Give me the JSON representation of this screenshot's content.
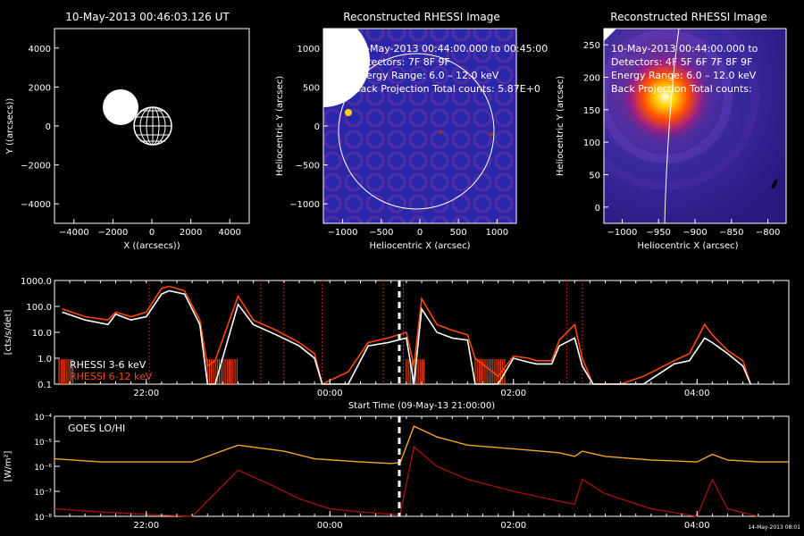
{
  "panels": {
    "overview": {
      "title": "10-May-2013 00:46:03.126 UT",
      "xlabel": "X ((arcsecs))",
      "ylabel": "Y ((arcsecs))",
      "xticks": [
        "−4000",
        "−2000",
        "0",
        "2000",
        "4000"
      ],
      "yticks": [
        "4000",
        "2000",
        "0",
        "−2000",
        "−4000"
      ]
    },
    "rhessi1": {
      "title": "Reconstructed RHESSI Image",
      "line1": "10-May-2013 00:44:00.000 to 00:45:00",
      "line2": "Detectors: 7F 8F 9F",
      "line3": "Energy Range: 6.0 – 12.0 keV",
      "line4": "Back Projection    Total counts: 5.87E+0",
      "xlabel": "Heliocentric X (arcsec)",
      "ylabel": "Heliocentric Y (arcsec)",
      "xticks": [
        "−1000",
        "−500",
        "0",
        "500",
        "1000"
      ],
      "yticks": [
        "1000",
        "500",
        "0",
        "−500",
        "−1000"
      ]
    },
    "rhessi2": {
      "title": "Reconstructed RHESSI Image",
      "line1": "10-May-2013 00:44:00.000 to",
      "line2": "Detectors: 4F 5F 6F 7F 8F 9F",
      "line3": "Energy Range: 6.0 – 12.0 keV",
      "line4": "Back Projection    Total counts:",
      "xlabel": "Heliocentric X (arcsec)",
      "ylabel": "Heliocentric Y (arcsec)",
      "xticks": [
        "−1000",
        "−950",
        "−900",
        "−850",
        "−800"
      ],
      "yticks": [
        "250",
        "200",
        "150",
        "100",
        "50",
        "0"
      ]
    }
  },
  "colors": {
    "rhessi_low": "#ffffff",
    "rhessi_high": "#ff4500",
    "goes_lo": "#f5a623",
    "goes_hi": "#a01010",
    "flare_marker": "#cc2200"
  },
  "footer_stamp": "14-May-2013 08:01",
  "chart_data": [
    {
      "type": "line",
      "title": "",
      "xlabel": "Start Time (09-May-13 21:00:00)",
      "ylabel": "[cts/s/det]",
      "scale": "log",
      "ylim": [
        0.1,
        1000
      ],
      "xlim_hours_label": [
        "21:00",
        "05:00"
      ],
      "xticks": [
        "22:00",
        "00:00",
        "02:00",
        "04:00"
      ],
      "yticks": [
        "1000.0",
        "100.0",
        "10.0",
        "1.0",
        "0.1"
      ],
      "legend": [
        "RHESSI  3-6 keV",
        "RHESSI  6-12 keV"
      ],
      "legend_placement": "bottom-left",
      "current_time_marker": "00:46",
      "series": [
        {
          "name": "RHESSI  3-6 keV",
          "x": [
            "21:05",
            "21:20",
            "21:35",
            "21:40",
            "21:50",
            "22:00",
            "22:10",
            "22:15",
            "22:25",
            "22:35",
            "22:40",
            "22:45",
            "23:00",
            "23:10",
            "23:25",
            "23:40",
            "23:50",
            "23:55",
            "00:12",
            "00:25",
            "00:38",
            "00:50",
            "00:55",
            "01:00",
            "01:10",
            "01:20",
            "01:30",
            "01:35",
            "01:50",
            "02:00",
            "02:10",
            "02:15",
            "02:25",
            "02:30",
            "02:40",
            "02:45",
            "02:52",
            "03:10",
            "03:25",
            "03:45",
            "03:55",
            "04:05",
            "04:10",
            "04:20",
            "04:30",
            "04:35"
          ],
          "values": [
            60,
            30,
            20,
            50,
            30,
            40,
            300,
            400,
            300,
            20,
            0.1,
            0.1,
            120,
            20,
            8,
            3,
            1,
            0.1,
            0.1,
            3,
            4,
            6,
            0.1,
            80,
            10,
            6,
            5,
            0.1,
            0.1,
            1,
            0.7,
            0.6,
            0.6,
            3,
            6,
            0.5,
            0.1,
            0.1,
            0.1,
            0.6,
            0.8,
            6,
            4,
            1.5,
            0.5,
            0.1
          ]
        },
        {
          "name": "RHESSI  6-12 keV",
          "x": [
            "21:05",
            "21:20",
            "21:35",
            "21:40",
            "21:50",
            "22:00",
            "22:10",
            "22:15",
            "22:25",
            "22:35",
            "22:40",
            "22:45",
            "23:00",
            "23:10",
            "23:25",
            "23:40",
            "23:50",
            "23:55",
            "00:12",
            "00:25",
            "00:38",
            "00:50",
            "00:55",
            "01:00",
            "01:10",
            "01:20",
            "01:30",
            "01:35",
            "01:50",
            "02:00",
            "02:10",
            "02:15",
            "02:25",
            "02:30",
            "02:40",
            "02:45",
            "02:52",
            "03:10",
            "03:25",
            "03:45",
            "03:55",
            "04:05",
            "04:10",
            "04:20",
            "04:30",
            "04:35"
          ],
          "values": [
            80,
            40,
            30,
            60,
            40,
            60,
            500,
            600,
            400,
            30,
            0.5,
            0.8,
            250,
            30,
            12,
            4,
            1.5,
            0.1,
            0.3,
            4,
            6,
            10,
            0.5,
            200,
            20,
            12,
            8,
            1,
            0.2,
            1.2,
            1,
            0.8,
            0.8,
            5,
            20,
            1,
            0.1,
            0.1,
            0.2,
            0.8,
            1.5,
            20,
            8,
            2,
            0.8,
            0.1
          ]
        }
      ]
    },
    {
      "type": "line",
      "title": "GOES LO/HI",
      "xlabel": "",
      "ylabel": "[W/m²]",
      "scale": "log",
      "ylim": [
        1e-08,
        0.0001
      ],
      "xticks": [
        "22:00",
        "00:00",
        "02:00",
        "04:00"
      ],
      "yticks": [
        "10⁻⁴",
        "10⁻⁵",
        "10⁻⁶",
        "10⁻⁷",
        "10⁻⁸"
      ],
      "series": [
        {
          "name": "GOES LO",
          "x": [
            "21:00",
            "21:30",
            "22:00",
            "22:30",
            "23:00",
            "23:30",
            "23:50",
            "00:20",
            "00:40",
            "00:46",
            "00:55",
            "01:10",
            "01:30",
            "02:00",
            "02:30",
            "02:40",
            "02:45",
            "03:00",
            "03:30",
            "04:00",
            "04:10",
            "04:20",
            "04:40",
            "05:00"
          ],
          "values": [
            2e-06,
            1.5e-06,
            1.5e-06,
            1.5e-06,
            7e-06,
            4e-06,
            2e-06,
            1.5e-06,
            1.3e-06,
            1.4e-06,
            4e-05,
            1.5e-05,
            7e-06,
            5e-06,
            3.5e-06,
            2.5e-06,
            4e-06,
            2.5e-06,
            1.8e-06,
            1.5e-06,
            3e-06,
            1.8e-06,
            1.5e-06,
            1.5e-06
          ]
        },
        {
          "name": "GOES HI",
          "x": [
            "21:00",
            "21:30",
            "22:00",
            "22:30",
            "23:00",
            "23:20",
            "23:40",
            "00:00",
            "00:20",
            "00:40",
            "00:46",
            "00:55",
            "01:10",
            "01:30",
            "02:00",
            "02:30",
            "02:40",
            "02:45",
            "03:00",
            "03:30",
            "04:00",
            "04:10",
            "04:20",
            "04:40"
          ],
          "values": [
            2e-08,
            1.5e-08,
            1.2e-08,
            1e-08,
            7e-07,
            2e-07,
            5e-08,
            2e-08,
            1.5e-08,
            1.2e-08,
            1.2e-08,
            6e-06,
            1e-06,
            3e-07,
            1e-07,
            4e-08,
            3e-08,
            3e-07,
            8e-08,
            2e-08,
            1e-08,
            3e-07,
            2e-08,
            1e-08
          ]
        }
      ]
    }
  ]
}
